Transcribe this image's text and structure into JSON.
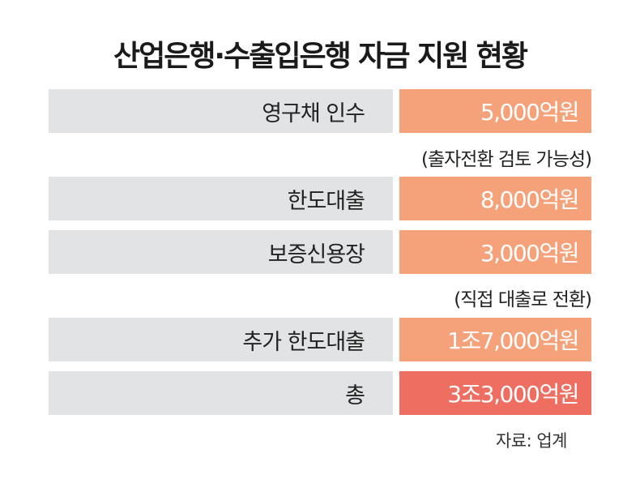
{
  "title": "산업은행·수출입은행 자금 지원 현황",
  "source": "자료: 업계",
  "chart_data": {
    "type": "table",
    "rows": [
      {
        "label": "영구채 인수",
        "value": "5,000억원",
        "note": "(출자전환 검토 가능성)"
      },
      {
        "label": "한도대출",
        "value": "8,000억원",
        "note": ""
      },
      {
        "label": "보증신용장",
        "value": "3,000억원",
        "note": "(직접 대출로 전환)"
      },
      {
        "label": "추가 한도대출",
        "value": "1조7,000억원",
        "note": ""
      },
      {
        "label": "총",
        "value": "3조3,000억원",
        "note": ""
      }
    ],
    "colors": {
      "value_cell": "#f5a27a",
      "total_cell": "#ef6e62",
      "label_cell": "#e2e3e5"
    }
  }
}
